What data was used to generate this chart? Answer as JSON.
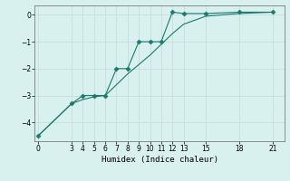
{
  "line1_x": [
    0,
    3,
    4,
    5,
    6,
    7,
    8,
    9,
    10,
    11,
    12,
    13,
    15,
    18,
    21
  ],
  "line1_y": [
    -4.5,
    -3.3,
    -3.0,
    -3.0,
    -3.0,
    -2.0,
    -2.0,
    -1.0,
    -1.0,
    -1.0,
    0.1,
    0.05,
    0.05,
    0.1,
    0.1
  ],
  "line2_x": [
    0,
    3,
    4,
    5,
    6,
    7,
    8,
    9,
    10,
    11,
    12,
    13,
    15,
    18,
    21
  ],
  "line2_y": [
    -4.5,
    -3.3,
    -3.15,
    -3.05,
    -3.0,
    -2.6,
    -2.2,
    -1.85,
    -1.5,
    -1.1,
    -0.7,
    -0.35,
    -0.05,
    0.05,
    0.1
  ],
  "line_color": "#1a7a6e",
  "marker": "D",
  "marker_size": 2.5,
  "bg_color": "#d8f0ee",
  "grid_color": "#c8dedd",
  "xlabel": "Humidex (Indice chaleur)",
  "xticks": [
    0,
    3,
    4,
    5,
    6,
    7,
    8,
    9,
    10,
    11,
    12,
    13,
    15,
    18,
    21
  ],
  "yticks": [
    0,
    -1,
    -2,
    -3,
    -4
  ],
  "ylim": [
    -4.7,
    0.35
  ],
  "xlim": [
    -0.3,
    22
  ]
}
